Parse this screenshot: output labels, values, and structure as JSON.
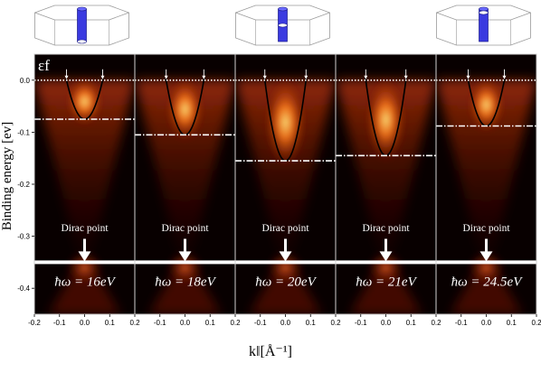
{
  "chart_data": {
    "type": "heatmap",
    "ylabel": "Binding energy [ev]",
    "xlabel": "k‖[Å⁻¹]",
    "xlim": [
      -0.2,
      0.2
    ],
    "ylim": [
      -0.45,
      0.05
    ],
    "x_ticks": [
      "-0.2",
      "-0.1",
      "0.0",
      "0.1",
      "0.2"
    ],
    "y_ticks": [
      {
        "value": 0.0,
        "label": "0.0"
      },
      {
        "value": -0.1,
        "label": "-0.1"
      },
      {
        "value": -0.2,
        "label": "-0.2"
      },
      {
        "value": -0.3,
        "label": "-0.3"
      },
      {
        "value": -0.4,
        "label": "-0.4"
      }
    ],
    "fermi_label": "εf",
    "dirac_point": -0.35,
    "dirac_label": "Dirac point",
    "panels": [
      {
        "photon_label": "ħω = 16eV",
        "band_min": -0.075,
        "kf": 0.072
      },
      {
        "photon_label": "ħω = 18eV",
        "band_min": -0.105,
        "kf": 0.075
      },
      {
        "photon_label": "ħω = 20eV",
        "band_min": -0.155,
        "kf": 0.082
      },
      {
        "photon_label": "ħω = 21eV",
        "band_min": -0.145,
        "kf": 0.08
      },
      {
        "photon_label": "ħω = 24.5eV",
        "band_min": -0.088,
        "kf": 0.072
      }
    ]
  }
}
